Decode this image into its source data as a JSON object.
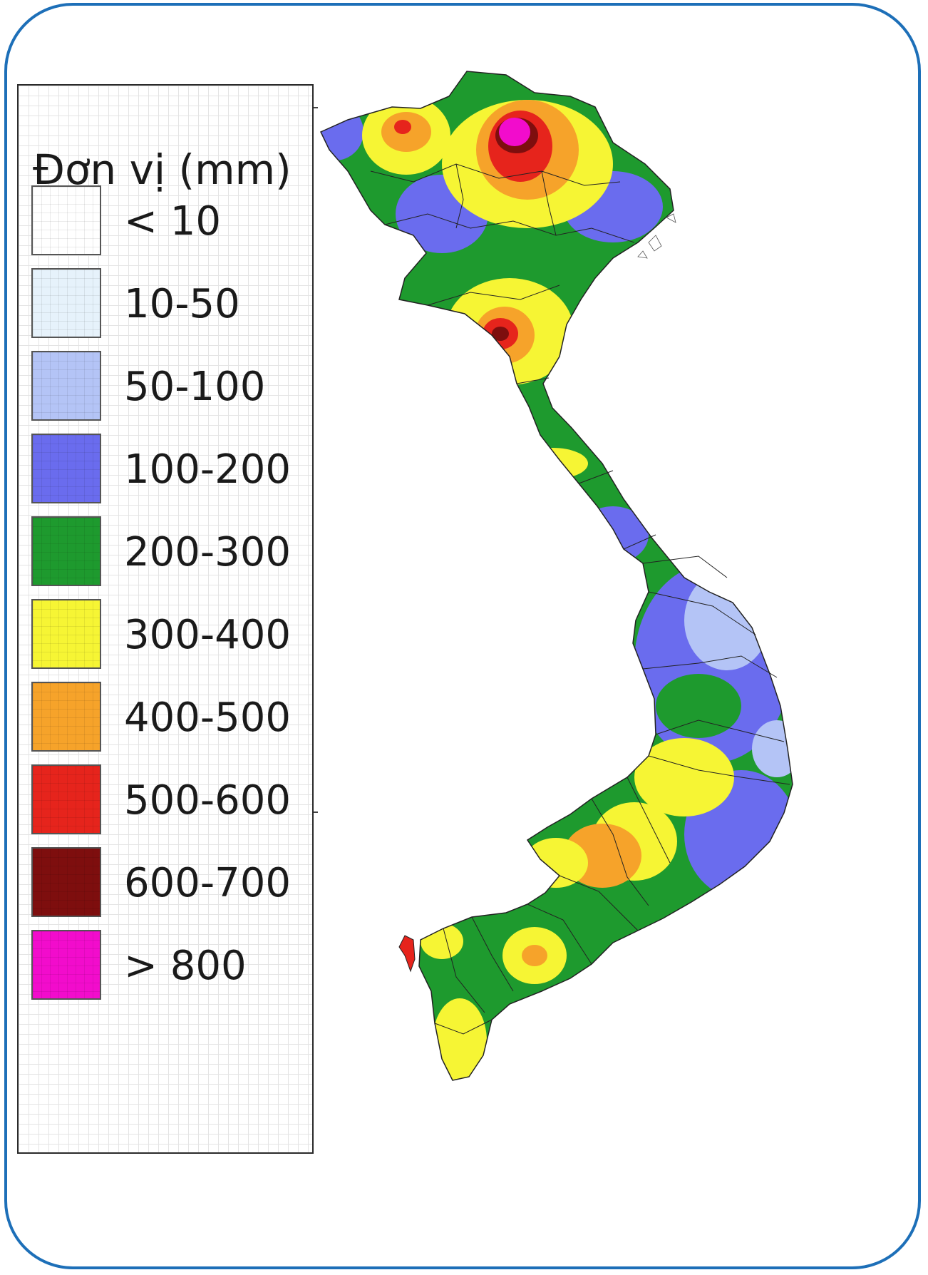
{
  "legend": {
    "title": "Đơn vị (mm)",
    "items": [
      {
        "label": "< 10",
        "color": "#ffffff"
      },
      {
        "label": "10-50",
        "color": "#e6f2fb"
      },
      {
        "label": "50-100",
        "color": "#b4c4f6"
      },
      {
        "label": "100-200",
        "color": "#6a6cee"
      },
      {
        "label": "200-300",
        "color": "#1e9a2e"
      },
      {
        "label": "300-400",
        "color": "#f6f534"
      },
      {
        "label": "400-500",
        "color": "#f6a32a"
      },
      {
        "label": "500-600",
        "color": "#e6241c"
      },
      {
        "label": "600-700",
        "color": "#7e0e0e"
      },
      {
        "label": "> 800",
        "color": "#f20ccc"
      }
    ]
  },
  "map": {
    "region": "Vietnam",
    "colors": {
      "frame": "#1d6fb8",
      "boundary": "#222222",
      "c0": "#ffffff",
      "c1": "#e6f2fb",
      "c2": "#b4c4f6",
      "c3": "#6a6cee",
      "c4": "#1e9a2e",
      "c5": "#f6f534",
      "c6": "#f6a32a",
      "c7": "#e6241c",
      "c8": "#7e0e0e",
      "c9": "#f20ccc"
    }
  }
}
